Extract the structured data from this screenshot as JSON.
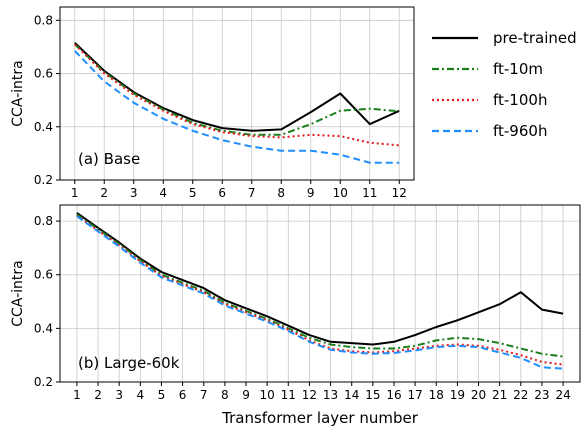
{
  "chart_data": [
    {
      "type": "line",
      "panel_label": "(a) Base",
      "xlabel": "",
      "ylabel": "CCA-intra",
      "x": [
        1,
        2,
        3,
        4,
        5,
        6,
        7,
        8,
        9,
        10,
        11,
        12
      ],
      "xlim": [
        0.5,
        12.5
      ],
      "ylim": [
        0.2,
        0.85
      ],
      "yticks": [
        0.2,
        0.4,
        0.6,
        0.8
      ],
      "grid": true,
      "series": [
        {
          "name": "pre-trained",
          "color": "#000000",
          "dash": "solid",
          "values": [
            0.715,
            0.61,
            0.53,
            0.47,
            0.425,
            0.395,
            0.385,
            0.39,
            0.455,
            0.525,
            0.41,
            0.46
          ]
        },
        {
          "name": "ft-10m",
          "color": "#1a7f1a",
          "dash": "dashdot",
          "values": [
            0.71,
            0.605,
            0.525,
            0.465,
            0.415,
            0.385,
            0.37,
            0.37,
            0.41,
            0.46,
            0.468,
            0.458
          ]
        },
        {
          "name": "ft-100h",
          "color": "#e31a1c",
          "dash": "dotted",
          "values": [
            0.71,
            0.6,
            0.52,
            0.46,
            0.41,
            0.38,
            0.365,
            0.36,
            0.37,
            0.365,
            0.34,
            0.33
          ]
        },
        {
          "name": "ft-960h",
          "color": "#1f8fff",
          "dash": "dashed",
          "values": [
            0.685,
            0.57,
            0.49,
            0.43,
            0.385,
            0.35,
            0.325,
            0.31,
            0.31,
            0.295,
            0.265,
            0.265
          ]
        }
      ]
    },
    {
      "type": "line",
      "panel_label": "(b) Large-60k",
      "xlabel": "Transformer layer number",
      "ylabel": "CCA-intra",
      "x": [
        1,
        2,
        3,
        4,
        5,
        6,
        7,
        8,
        9,
        10,
        11,
        12,
        13,
        14,
        15,
        16,
        17,
        18,
        19,
        20,
        21,
        22,
        23,
        24
      ],
      "xlim": [
        0.2,
        24.8
      ],
      "ylim": [
        0.2,
        0.86
      ],
      "yticks": [
        0.2,
        0.4,
        0.6,
        0.8
      ],
      "grid": true,
      "series": [
        {
          "name": "pre-trained",
          "color": "#000000",
          "dash": "solid",
          "values": [
            0.83,
            0.775,
            0.72,
            0.66,
            0.61,
            0.58,
            0.55,
            0.505,
            0.475,
            0.445,
            0.41,
            0.375,
            0.35,
            0.345,
            0.34,
            0.35,
            0.375,
            0.405,
            0.43,
            0.46,
            0.49,
            0.535,
            0.47,
            0.455
          ]
        },
        {
          "name": "ft-10m",
          "color": "#1a7f1a",
          "dash": "dashdot",
          "values": [
            0.825,
            0.77,
            0.715,
            0.655,
            0.6,
            0.57,
            0.54,
            0.495,
            0.465,
            0.435,
            0.4,
            0.365,
            0.34,
            0.33,
            0.325,
            0.325,
            0.335,
            0.355,
            0.365,
            0.36,
            0.345,
            0.325,
            0.305,
            0.295
          ]
        },
        {
          "name": "ft-100h",
          "color": "#e31a1c",
          "dash": "dotted",
          "values": [
            0.82,
            0.765,
            0.71,
            0.65,
            0.595,
            0.565,
            0.535,
            0.49,
            0.46,
            0.43,
            0.395,
            0.355,
            0.325,
            0.315,
            0.31,
            0.315,
            0.325,
            0.335,
            0.34,
            0.335,
            0.32,
            0.3,
            0.275,
            0.265
          ]
        },
        {
          "name": "ft-960h",
          "color": "#1f8fff",
          "dash": "dashed",
          "values": [
            0.818,
            0.762,
            0.705,
            0.645,
            0.59,
            0.56,
            0.53,
            0.485,
            0.455,
            0.425,
            0.39,
            0.35,
            0.32,
            0.31,
            0.305,
            0.308,
            0.318,
            0.33,
            0.335,
            0.33,
            0.31,
            0.29,
            0.255,
            0.25
          ]
        }
      ]
    }
  ],
  "legend": {
    "placement": "upper-right",
    "entries": [
      "pre-trained",
      "ft-10m",
      "ft-100h",
      "ft-960h"
    ]
  }
}
